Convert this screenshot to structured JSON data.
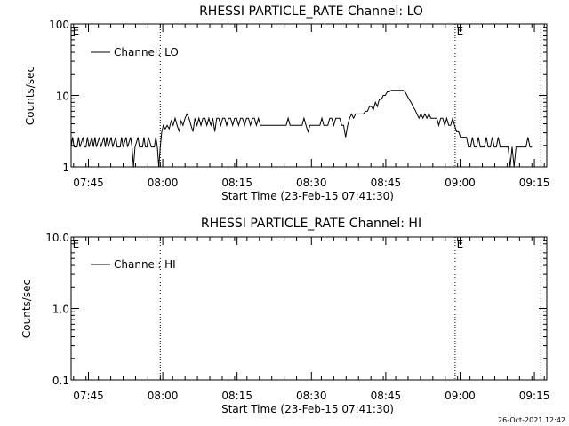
{
  "chart_data": [
    {
      "type": "line",
      "title": "RHESSI PARTICLE_RATE Channel: LO",
      "xlabel": "Start Time (23-Feb-15 07:41:30)",
      "ylabel": "Counts/sec",
      "yscale": "log",
      "ylim": [
        1,
        100
      ],
      "yticks": [
        "1",
        "10",
        "100"
      ],
      "xlim_min": [
        0,
        96
      ],
      "xticks": [
        {
          "min": 3.5,
          "label": "07:45"
        },
        {
          "min": 18.5,
          "label": "08:00"
        },
        {
          "min": 33.5,
          "label": "08:15"
        },
        {
          "min": 48.5,
          "label": "08:30"
        },
        {
          "min": 63.5,
          "label": "08:45"
        },
        {
          "min": 78.5,
          "label": "09:00"
        },
        {
          "min": 93.5,
          "label": "09:15"
        }
      ],
      "event_lines_min": [
        18.0,
        77.5,
        94.8
      ],
      "event_marks": [
        {
          "min": 0.3,
          "label": "E"
        },
        {
          "min": 77.8,
          "label": "E"
        }
      ],
      "legend": {
        "label": "Channel: LO",
        "placement": "top-left"
      },
      "series": [
        {
          "name": "Channel: LO",
          "points": [
            [
              0.0,
              1.9
            ],
            [
              0.3,
              2.6
            ],
            [
              0.6,
              1.9
            ],
            [
              1.2,
              1.9
            ],
            [
              1.5,
              2.6
            ],
            [
              1.8,
              1.9
            ],
            [
              2.4,
              2.6
            ],
            [
              2.7,
              1.9
            ],
            [
              3.0,
              1.9
            ],
            [
              3.3,
              2.6
            ],
            [
              3.6,
              1.9
            ],
            [
              4.2,
              2.6
            ],
            [
              4.5,
              1.9
            ],
            [
              4.8,
              2.6
            ],
            [
              5.1,
              1.9
            ],
            [
              5.7,
              2.6
            ],
            [
              6.0,
              1.9
            ],
            [
              6.6,
              2.6
            ],
            [
              6.9,
              1.9
            ],
            [
              7.2,
              2.6
            ],
            [
              7.5,
              1.9
            ],
            [
              8.1,
              2.6
            ],
            [
              8.4,
              1.9
            ],
            [
              9.0,
              2.6
            ],
            [
              9.3,
              1.9
            ],
            [
              9.9,
              1.9
            ],
            [
              10.2,
              2.6
            ],
            [
              10.5,
              1.9
            ],
            [
              11.1,
              2.6
            ],
            [
              11.4,
              1.9
            ],
            [
              12.0,
              2.6
            ],
            [
              12.3,
              1.9
            ],
            [
              12.6,
              0.9
            ],
            [
              12.9,
              1.9
            ],
            [
              13.5,
              2.6
            ],
            [
              13.8,
              1.9
            ],
            [
              14.4,
              1.9
            ],
            [
              14.7,
              2.6
            ],
            [
              15.0,
              1.9
            ],
            [
              15.3,
              1.9
            ],
            [
              15.6,
              2.6
            ],
            [
              16.2,
              1.9
            ],
            [
              16.8,
              1.9
            ],
            [
              17.1,
              2.6
            ],
            [
              17.4,
              1.9
            ],
            [
              17.7,
              0.9
            ],
            [
              18.0,
              1.9
            ],
            [
              18.3,
              3.1
            ],
            [
              18.6,
              3.8
            ],
            [
              19.0,
              3.4
            ],
            [
              19.4,
              3.8
            ],
            [
              19.8,
              3.4
            ],
            [
              20.2,
              4.4
            ],
            [
              20.6,
              3.8
            ],
            [
              21.0,
              4.8
            ],
            [
              21.4,
              3.8
            ],
            [
              21.8,
              3.1
            ],
            [
              22.2,
              4.4
            ],
            [
              22.6,
              3.8
            ],
            [
              23.0,
              4.8
            ],
            [
              23.4,
              5.5
            ],
            [
              23.8,
              4.8
            ],
            [
              24.2,
              3.8
            ],
            [
              24.6,
              3.1
            ],
            [
              25.0,
              4.8
            ],
            [
              25.4,
              3.8
            ],
            [
              25.8,
              4.8
            ],
            [
              26.2,
              3.8
            ],
            [
              26.6,
              4.8
            ],
            [
              27.0,
              4.8
            ],
            [
              27.4,
              3.8
            ],
            [
              27.8,
              4.8
            ],
            [
              28.2,
              3.8
            ],
            [
              28.6,
              4.8
            ],
            [
              29.0,
              3.1
            ],
            [
              29.4,
              4.8
            ],
            [
              29.8,
              4.8
            ],
            [
              30.2,
              3.8
            ],
            [
              30.6,
              4.8
            ],
            [
              31.0,
              4.8
            ],
            [
              31.4,
              3.8
            ],
            [
              31.8,
              4.8
            ],
            [
              32.2,
              4.8
            ],
            [
              32.6,
              3.8
            ],
            [
              33.0,
              4.8
            ],
            [
              33.4,
              4.8
            ],
            [
              33.8,
              3.8
            ],
            [
              34.2,
              4.8
            ],
            [
              34.6,
              4.8
            ],
            [
              35.0,
              3.8
            ],
            [
              35.4,
              4.8
            ],
            [
              35.8,
              4.8
            ],
            [
              36.2,
              3.8
            ],
            [
              36.6,
              4.8
            ],
            [
              37.0,
              4.8
            ],
            [
              37.4,
              3.8
            ],
            [
              37.8,
              4.8
            ],
            [
              38.2,
              3.8
            ],
            [
              38.6,
              3.8
            ],
            [
              39.0,
              3.8
            ],
            [
              39.4,
              3.8
            ],
            [
              39.8,
              3.8
            ],
            [
              40.2,
              3.8
            ],
            [
              40.6,
              3.8
            ],
            [
              41.0,
              3.8
            ],
            [
              41.4,
              3.8
            ],
            [
              41.8,
              3.8
            ],
            [
              42.2,
              3.8
            ],
            [
              42.6,
              3.8
            ],
            [
              43.0,
              3.8
            ],
            [
              43.4,
              3.8
            ],
            [
              43.8,
              4.8
            ],
            [
              44.2,
              3.8
            ],
            [
              44.6,
              3.8
            ],
            [
              45.0,
              3.8
            ],
            [
              45.4,
              3.8
            ],
            [
              45.8,
              3.8
            ],
            [
              46.2,
              3.8
            ],
            [
              46.6,
              3.8
            ],
            [
              47.0,
              4.8
            ],
            [
              47.4,
              3.8
            ],
            [
              47.8,
              3.1
            ],
            [
              48.2,
              3.8
            ],
            [
              48.6,
              3.8
            ],
            [
              49.0,
              3.8
            ],
            [
              49.4,
              3.8
            ],
            [
              49.8,
              3.8
            ],
            [
              50.2,
              3.8
            ],
            [
              50.6,
              4.8
            ],
            [
              51.0,
              3.8
            ],
            [
              51.4,
              3.8
            ],
            [
              51.8,
              3.8
            ],
            [
              52.2,
              4.8
            ],
            [
              52.6,
              4.8
            ],
            [
              53.0,
              3.8
            ],
            [
              53.4,
              4.8
            ],
            [
              53.8,
              4.8
            ],
            [
              54.2,
              4.8
            ],
            [
              54.6,
              3.8
            ],
            [
              55.0,
              3.8
            ],
            [
              55.4,
              2.6
            ],
            [
              55.8,
              3.8
            ],
            [
              56.2,
              4.8
            ],
            [
              56.6,
              5.5
            ],
            [
              57.0,
              4.8
            ],
            [
              57.4,
              5.5
            ],
            [
              57.8,
              5.5
            ],
            [
              58.2,
              5.5
            ],
            [
              58.6,
              5.5
            ],
            [
              59.0,
              5.5
            ],
            [
              59.4,
              6.0
            ],
            [
              59.8,
              6.0
            ],
            [
              60.2,
              7.0
            ],
            [
              60.6,
              7.0
            ],
            [
              61.0,
              6.3
            ],
            [
              61.4,
              8.0
            ],
            [
              61.8,
              7.0
            ],
            [
              62.2,
              8.8
            ],
            [
              62.6,
              8.8
            ],
            [
              63.0,
              10.0
            ],
            [
              63.4,
              10.0
            ],
            [
              63.8,
              11.2
            ],
            [
              64.2,
              11.2
            ],
            [
              64.6,
              11.8
            ],
            [
              65.0,
              11.8
            ],
            [
              65.4,
              11.8
            ],
            [
              65.8,
              11.8
            ],
            [
              66.2,
              11.8
            ],
            [
              66.6,
              11.8
            ],
            [
              67.0,
              11.8
            ],
            [
              67.4,
              11.2
            ],
            [
              67.8,
              10.0
            ],
            [
              68.2,
              8.8
            ],
            [
              68.6,
              8.0
            ],
            [
              69.0,
              7.0
            ],
            [
              69.4,
              6.3
            ],
            [
              69.8,
              5.5
            ],
            [
              70.2,
              4.8
            ],
            [
              70.6,
              5.5
            ],
            [
              71.0,
              4.8
            ],
            [
              71.4,
              5.5
            ],
            [
              71.8,
              4.8
            ],
            [
              72.2,
              5.5
            ],
            [
              72.6,
              4.8
            ],
            [
              73.0,
              4.8
            ],
            [
              73.4,
              4.8
            ],
            [
              73.8,
              4.8
            ],
            [
              74.2,
              3.8
            ],
            [
              74.6,
              4.8
            ],
            [
              75.0,
              4.8
            ],
            [
              75.4,
              3.8
            ],
            [
              75.8,
              4.8
            ],
            [
              76.2,
              3.8
            ],
            [
              76.6,
              3.8
            ],
            [
              77.0,
              4.8
            ],
            [
              77.4,
              3.8
            ],
            [
              77.8,
              3.1
            ],
            [
              78.2,
              3.1
            ],
            [
              78.6,
              2.6
            ],
            [
              79.0,
              2.6
            ],
            [
              79.4,
              2.6
            ],
            [
              79.8,
              2.6
            ],
            [
              80.2,
              1.9
            ],
            [
              80.6,
              1.9
            ],
            [
              81.0,
              2.6
            ],
            [
              81.4,
              1.9
            ],
            [
              81.8,
              1.9
            ],
            [
              82.2,
              2.6
            ],
            [
              82.6,
              1.9
            ],
            [
              83.0,
              1.9
            ],
            [
              83.4,
              1.9
            ],
            [
              83.8,
              2.6
            ],
            [
              84.2,
              1.9
            ],
            [
              84.6,
              1.9
            ],
            [
              85.0,
              2.6
            ],
            [
              85.4,
              1.9
            ],
            [
              85.8,
              1.9
            ],
            [
              86.2,
              2.6
            ],
            [
              86.6,
              1.9
            ],
            [
              87.0,
              1.9
            ],
            [
              87.4,
              1.9
            ],
            [
              87.8,
              1.9
            ],
            [
              88.2,
              1.9
            ],
            [
              88.6,
              0.9
            ],
            [
              89.0,
              1.9
            ],
            [
              89.4,
              0.9
            ],
            [
              89.8,
              1.9
            ],
            [
              90.2,
              1.9
            ],
            [
              90.6,
              1.9
            ],
            [
              91.0,
              1.9
            ],
            [
              91.4,
              1.9
            ],
            [
              91.8,
              1.9
            ],
            [
              92.2,
              2.6
            ],
            [
              92.6,
              1.9
            ],
            [
              93.0,
              1.9
            ]
          ]
        }
      ]
    },
    {
      "type": "line",
      "title": "RHESSI PARTICLE_RATE Channel: HI",
      "xlabel": "Start Time (23-Feb-15 07:41:30)",
      "ylabel": "Counts/sec",
      "yscale": "log",
      "ylim": [
        0.1,
        10.0
      ],
      "yticks": [
        "0.1",
        "1.0",
        "10.0"
      ],
      "xlim_min": [
        0,
        96
      ],
      "xticks": [
        {
          "min": 3.5,
          "label": "07:45"
        },
        {
          "min": 18.5,
          "label": "08:00"
        },
        {
          "min": 33.5,
          "label": "08:15"
        },
        {
          "min": 48.5,
          "label": "08:30"
        },
        {
          "min": 63.5,
          "label": "08:45"
        },
        {
          "min": 78.5,
          "label": "09:00"
        },
        {
          "min": 93.5,
          "label": "09:15"
        }
      ],
      "event_lines_min": [
        18.0,
        77.5,
        94.8
      ],
      "event_marks": [
        {
          "min": 0.3,
          "label": "E"
        },
        {
          "min": 77.8,
          "label": "E"
        }
      ],
      "legend": {
        "label": "Channel: HI",
        "placement": "top-left"
      },
      "series": [
        {
          "name": "Channel: HI",
          "points": []
        }
      ]
    }
  ],
  "footer": {
    "timestamp": "26-Oct-2021 12:42"
  }
}
